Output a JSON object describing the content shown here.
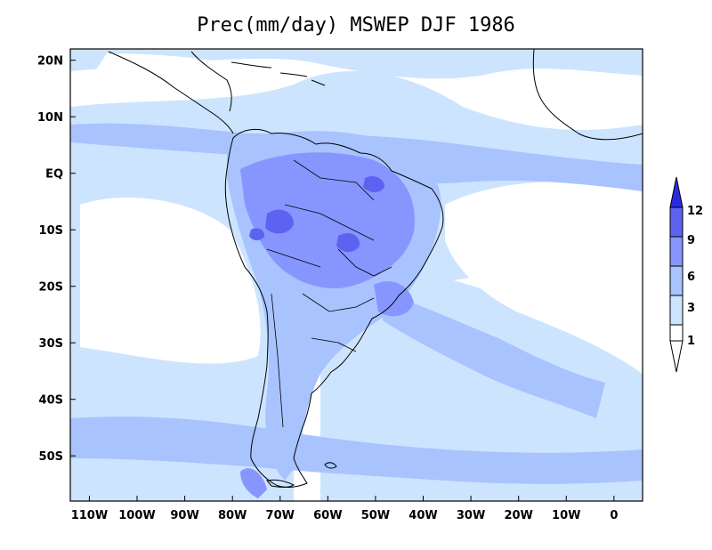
{
  "title": "Prec(mm/day) MSWEP DJF 1986",
  "map": {
    "projection": "lat-lon",
    "lon_range": [
      -114,
      6
    ],
    "lat_range": [
      -58,
      22
    ],
    "lat_ticks": [
      {
        "value": 20,
        "label": "20N"
      },
      {
        "value": 10,
        "label": "10N"
      },
      {
        "value": 0,
        "label": "EQ"
      },
      {
        "value": -10,
        "label": "10S"
      },
      {
        "value": -20,
        "label": "20S"
      },
      {
        "value": -30,
        "label": "30S"
      },
      {
        "value": -40,
        "label": "40S"
      },
      {
        "value": -50,
        "label": "50S"
      }
    ],
    "lon_ticks": [
      {
        "value": -110,
        "label": "110W"
      },
      {
        "value": -100,
        "label": "100W"
      },
      {
        "value": -90,
        "label": "90W"
      },
      {
        "value": -80,
        "label": "80W"
      },
      {
        "value": -70,
        "label": "70W"
      },
      {
        "value": -60,
        "label": "60W"
      },
      {
        "value": -50,
        "label": "50W"
      },
      {
        "value": -40,
        "label": "40W"
      },
      {
        "value": -30,
        "label": "30W"
      },
      {
        "value": -20,
        "label": "20W"
      },
      {
        "value": -10,
        "label": "10W"
      },
      {
        "value": 0,
        "label": "0"
      }
    ]
  },
  "colorbar": {
    "levels": [
      "1",
      "3",
      "6",
      "9",
      "12"
    ],
    "colors": {
      "below_1": "#ffffff",
      "1_3": "#cde4ff",
      "3_6": "#a9c3ff",
      "6_9": "#8796ff",
      "9_12": "#5d62f0",
      "above_12": "#2a2ae0"
    }
  },
  "colors": {
    "land_border": "#000000",
    "background": "#ffffff"
  }
}
